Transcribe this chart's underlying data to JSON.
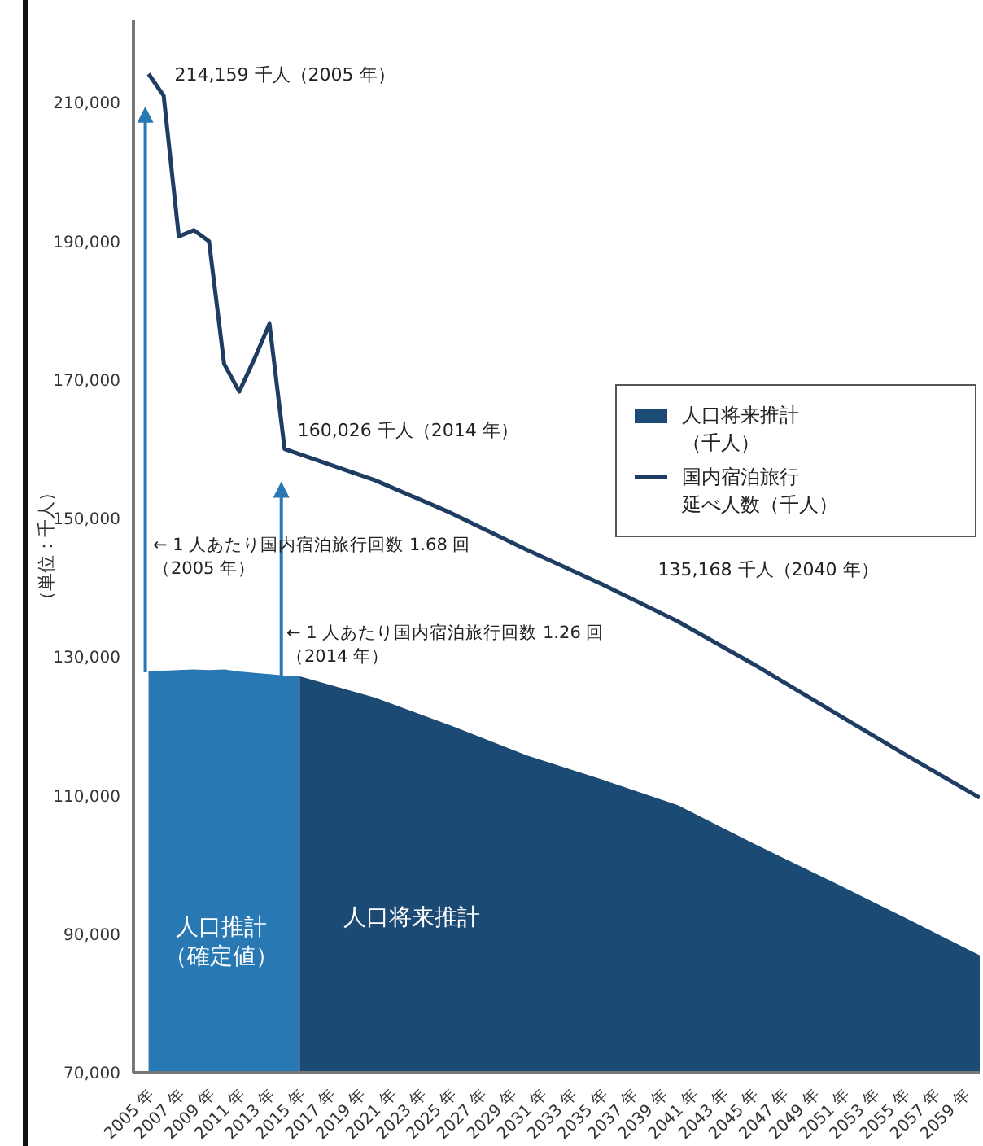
{
  "chart_data": {
    "type": "line",
    "ylabel": "（単位：千人）",
    "xlim": [
      2004,
      2060
    ],
    "ylim": [
      70000,
      222000
    ],
    "yticks": [
      {
        "value": 70000,
        "label": "70,000"
      },
      {
        "value": 90000,
        "label": "90,000"
      },
      {
        "value": 110000,
        "label": "110,000"
      },
      {
        "value": 130000,
        "label": "130,000"
      },
      {
        "value": 150000,
        "label": "150,000"
      },
      {
        "value": 170000,
        "label": "170,000"
      },
      {
        "value": 190000,
        "label": "190,000"
      },
      {
        "value": 210000,
        "label": "210,000"
      }
    ],
    "xticks": [
      {
        "value": 2005,
        "label": "2005 年"
      },
      {
        "value": 2007,
        "label": "2007 年"
      },
      {
        "value": 2009,
        "label": "2009 年"
      },
      {
        "value": 2011,
        "label": "2011 年"
      },
      {
        "value": 2013,
        "label": "2013 年"
      },
      {
        "value": 2015,
        "label": "2015 年"
      },
      {
        "value": 2017,
        "label": "2017 年"
      },
      {
        "value": 2019,
        "label": "2019 年"
      },
      {
        "value": 2021,
        "label": "2021 年"
      },
      {
        "value": 2023,
        "label": "2023 年"
      },
      {
        "value": 2025,
        "label": "2025 年"
      },
      {
        "value": 2027,
        "label": "2027 年"
      },
      {
        "value": 2029,
        "label": "2029 年"
      },
      {
        "value": 2031,
        "label": "2031 年"
      },
      {
        "value": 2033,
        "label": "2033 年"
      },
      {
        "value": 2035,
        "label": "2035 年"
      },
      {
        "value": 2037,
        "label": "2037 年"
      },
      {
        "value": 2039,
        "label": "2039 年"
      },
      {
        "value": 2041,
        "label": "2041 年"
      },
      {
        "value": 2043,
        "label": "2043 年"
      },
      {
        "value": 2045,
        "label": "2045 年"
      },
      {
        "value": 2047,
        "label": "2047 年"
      },
      {
        "value": 2049,
        "label": "2049 年"
      },
      {
        "value": 2051,
        "label": "2051 年"
      },
      {
        "value": 2053,
        "label": "2053 年"
      },
      {
        "value": 2055,
        "label": "2055 年"
      },
      {
        "value": 2057,
        "label": "2057 年"
      },
      {
        "value": 2059,
        "label": "2059 年"
      }
    ],
    "series": [
      {
        "type": "area",
        "color": "#2878b4",
        "x": [
          2005,
          2006,
          2007,
          2008,
          2009,
          2010,
          2011,
          2012,
          2013,
          2014,
          2015
        ],
        "values": [
          127800,
          127900,
          128000,
          128100,
          128000,
          128100,
          127800,
          127600,
          127400,
          127200,
          127100
        ]
      },
      {
        "type": "area",
        "name": "人口将来推計（千人）",
        "color": "#1b4a74",
        "x": [
          2015,
          2020,
          2025,
          2030,
          2035,
          2040,
          2045,
          2050,
          2055,
          2060
        ],
        "values": [
          127100,
          124000,
          120000,
          115700,
          112200,
          108500,
          103000,
          97700,
          92300,
          86800
        ]
      },
      {
        "name": "国内宿泊旅行延べ人数（千人）",
        "color": "#1f3d63",
        "x": [
          2005,
          2006,
          2007,
          2008,
          2009,
          2010,
          2011,
          2012,
          2013,
          2014,
          2020,
          2025,
          2030,
          2035,
          2040,
          2045,
          2050,
          2055,
          2060
        ],
        "values": [
          214159,
          211000,
          190700,
          191600,
          190000,
          172300,
          168300,
          173000,
          178100,
          160026,
          155500,
          150800,
          145500,
          140500,
          135168,
          129000,
          122500,
          116000,
          109700
        ]
      }
    ],
    "annotations": [
      {
        "text": "214,159 千人（2005 年）",
        "x": 2005,
        "y": 214159
      },
      {
        "text": "160,026 千人（2014 年）",
        "x": 2014,
        "y": 160026
      },
      {
        "text": "135,168 千人（2040 年）",
        "x": 2040,
        "y": 135168
      },
      "← 1 人あたり国内宿泊旅行回数 1.68 回（2005 年）",
      "← 1 人あたり国内宿泊旅行回数 1.26 回（2014 年）",
      "人口推計（確定値）",
      "人口将来推計"
    ],
    "legend": "right",
    "grid": false,
    "marker": "none",
    "line_style": "solid"
  }
}
